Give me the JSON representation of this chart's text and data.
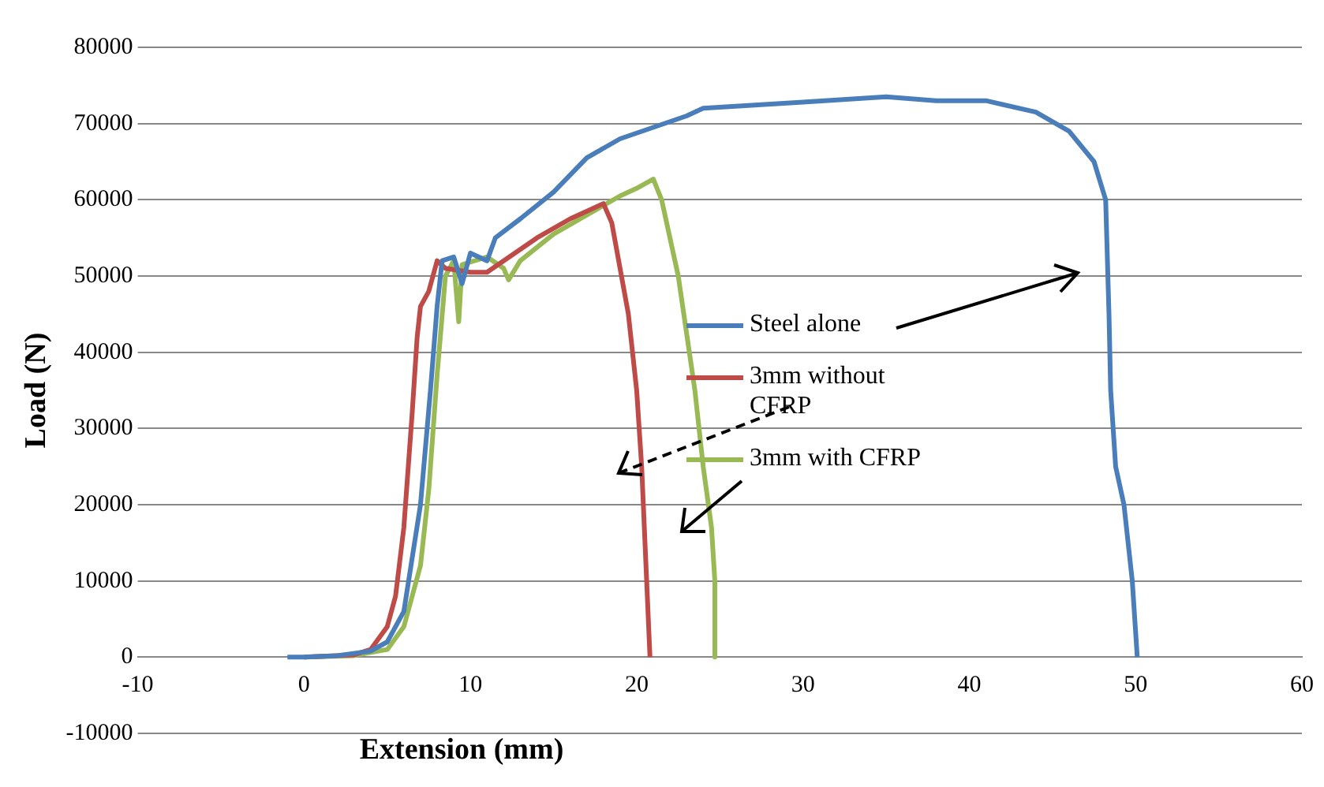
{
  "chart_data": {
    "type": "line",
    "xlabel": "Extension (mm)",
    "ylabel": "Load (N)",
    "xlim": [
      -10,
      60
    ],
    "xticks": [
      -10,
      0,
      10,
      20,
      30,
      40,
      50,
      60
    ],
    "ylim": [
      -10000,
      80000
    ],
    "yticks": [
      -10000,
      0,
      10000,
      20000,
      30000,
      40000,
      50000,
      60000,
      70000,
      80000
    ],
    "grid": "y",
    "legend": "right",
    "marker": "none",
    "series": [
      {
        "name": "Steel alone",
        "color": "#4a7ebb",
        "x": [
          -1,
          0,
          2,
          4,
          5,
          6,
          7,
          7.6,
          8,
          8.3,
          9,
          9.5,
          10,
          11,
          11.5,
          13,
          15,
          17,
          19,
          21,
          23,
          24,
          30,
          35,
          38,
          41,
          44,
          46,
          47.5,
          48.2,
          48.4,
          48.5,
          48.8,
          49.3,
          49.8,
          50.1
        ],
        "values": [
          0,
          0,
          200,
          800,
          2000,
          6000,
          20000,
          35000,
          46000,
          52000,
          52500,
          49000,
          53000,
          52000,
          55000,
          57500,
          61000,
          65500,
          68000,
          69500,
          71000,
          72000,
          72800,
          73500,
          73000,
          73000,
          71500,
          69000,
          65000,
          60000,
          45000,
          35000,
          25000,
          20000,
          10000,
          0
        ]
      },
      {
        "name": "3mm without CFRP",
        "color": "#be4b48",
        "x": [
          0,
          3,
          4,
          5,
          5.5,
          6,
          6.5,
          6.8,
          7,
          7.5,
          8,
          8.5,
          10,
          11,
          12,
          14,
          16,
          18,
          18.5,
          19.5,
          20,
          20.3,
          20.6,
          20.8
        ],
        "values": [
          0,
          300,
          1000,
          4000,
          8000,
          17000,
          32000,
          42000,
          46000,
          48000,
          52000,
          51000,
          50500,
          50500,
          52000,
          55000,
          57500,
          59500,
          57000,
          45000,
          35000,
          25000,
          10000,
          0
        ]
      },
      {
        "name": "3mm with CFRP",
        "color": "#98b954",
        "x": [
          0,
          3,
          5,
          6,
          7,
          7.5,
          8,
          8.5,
          9,
          9.3,
          9.5,
          11,
          12,
          12.3,
          13,
          15,
          17,
          19,
          20,
          21,
          21.5,
          22.5,
          23.5,
          24,
          24.5,
          24.7,
          24.7
        ],
        "values": [
          0,
          200,
          1000,
          4000,
          12000,
          22000,
          37000,
          50000,
          52000,
          44000,
          51500,
          52500,
          51000,
          49500,
          52000,
          55500,
          58000,
          60500,
          61500,
          62700,
          60000,
          50000,
          35000,
          25000,
          17000,
          10000,
          0
        ]
      }
    ]
  }
}
